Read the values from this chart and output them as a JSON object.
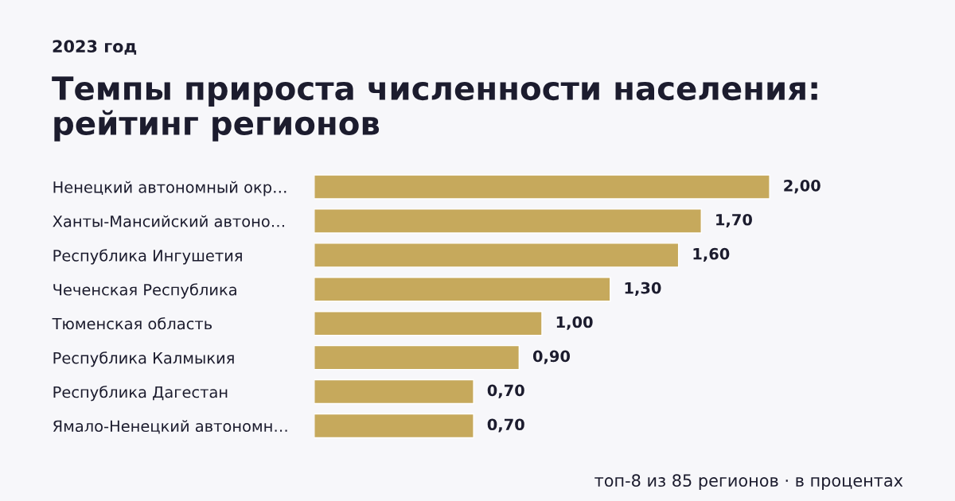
{
  "chart_data": {
    "type": "bar",
    "orientation": "horizontal",
    "subtitle": "2023 год",
    "title": "Темпы прироста численности населения:\nрейтинг регионов",
    "categories": [
      "Ненецкий автономный окр…",
      "Ханты-Мансийский автоно…",
      "Республика Ингушетия",
      "Чеченская Республика",
      "Тюменская область",
      "Республика Калмыкия",
      "Республика Дагестан",
      "Ямало-Ненецкий автономн…"
    ],
    "values": [
      2.0,
      1.7,
      1.6,
      1.3,
      1.0,
      0.9,
      0.7,
      0.7
    ],
    "value_labels": [
      "2,00",
      "1,70",
      "1,60",
      "1,30",
      "1,00",
      "0,90",
      "0,70",
      "0,70"
    ],
    "color": "#c6a95c",
    "grid": false,
    "legend": false,
    "tick_labels": "y",
    "annotations": [
      "топ-8 из 85 регионов · в процентах"
    ]
  }
}
